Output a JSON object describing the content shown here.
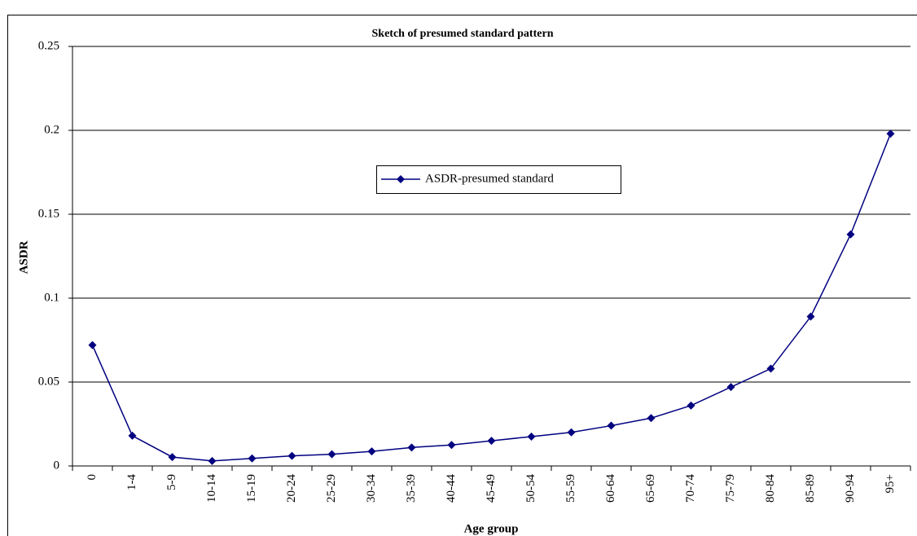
{
  "chart_data": {
    "type": "line",
    "title": "Sketch of presumed standard pattern",
    "x_label": "Age group",
    "y_label": "ASDR",
    "categories": [
      "0",
      "1-4",
      "5-9",
      "10-14",
      "15-19",
      "20-24",
      "25-29",
      "30-34",
      "35-39",
      "40-44",
      "45-49",
      "50-54",
      "55-59",
      "60-64",
      "65-69",
      "70-74",
      "75-79",
      "80-84",
      "85-89",
      "90-94",
      "95+"
    ],
    "series": [
      {
        "name": "ASDR-presumed standard",
        "color": "#000080",
        "values": [
          0.072,
          0.018,
          0.0053,
          0.003,
          0.0045,
          0.006,
          0.007,
          0.0087,
          0.011,
          0.0125,
          0.015,
          0.0175,
          0.02,
          0.024,
          0.0285,
          0.036,
          0.047,
          0.058,
          0.089,
          0.138,
          0.198
        ]
      }
    ],
    "ylim": [
      0,
      0.25
    ],
    "yticks": [
      0,
      0.05,
      0.1,
      0.15,
      0.2,
      0.25
    ],
    "grid": true,
    "legend": "center"
  }
}
